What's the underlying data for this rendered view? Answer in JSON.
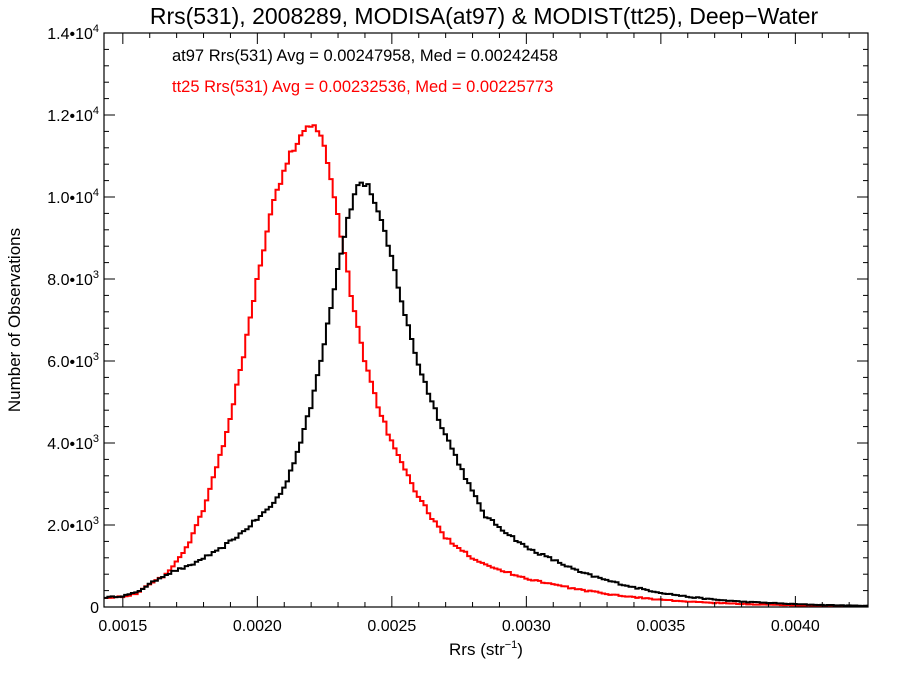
{
  "chart_data": {
    "type": "line",
    "title": "Rrs(531), 2008289, MODISA(at97) & MODIST(tt25), Deep−Water",
    "xlabel": {
      "base": "Rrs (str",
      "sup": "−1",
      "close": ")"
    },
    "ylabel": "Number of Observations",
    "xlim": [
      0.00143,
      0.00427
    ],
    "ylim": [
      0,
      14000
    ],
    "x_ticks": [
      0.0015,
      0.002,
      0.0025,
      0.003,
      0.0035,
      0.004
    ],
    "x_tick_labels": [
      "0.0015",
      "0.0020",
      "0.0025",
      "0.0030",
      "0.0035",
      "0.0040"
    ],
    "x_minor_step": 0.0001,
    "y_ticks": [
      0,
      2000,
      4000,
      6000,
      8000,
      10000,
      12000,
      14000
    ],
    "y_tick_labels": [
      {
        "mant": "0",
        "exp": ""
      },
      {
        "mant": "2.0•10",
        "exp": "3"
      },
      {
        "mant": "4.0•10",
        "exp": "3"
      },
      {
        "mant": "6.0•10",
        "exp": "3"
      },
      {
        "mant": "8.0•10",
        "exp": "3"
      },
      {
        "mant": "1.0•10",
        "exp": "4"
      },
      {
        "mant": "1.2•10",
        "exp": "4"
      },
      {
        "mant": "1.4•10",
        "exp": "4"
      }
    ],
    "y_minor_step": 400,
    "grid": false,
    "annotations": [
      {
        "text": "at97 Rrs(531) Avg = 0.00247958, Med = 0.00242458",
        "color": "#000000"
      },
      {
        "text": "tt25 Rrs(531) Avg = 0.00232536, Med = 0.00225773",
        "color": "#ff0000"
      }
    ],
    "bin_width": 1.25e-05,
    "series": [
      {
        "name": "at97",
        "color": "#000000",
        "style": "step",
        "points": [
          [
            0.00143,
            230
          ],
          [
            0.0015,
            270
          ],
          [
            0.00155,
            350
          ],
          [
            0.0016,
            560
          ],
          [
            0.00165,
            760
          ],
          [
            0.0017,
            900
          ],
          [
            0.00175,
            1000
          ],
          [
            0.0018,
            1200
          ],
          [
            0.00185,
            1350
          ],
          [
            0.0019,
            1600
          ],
          [
            0.00195,
            1850
          ],
          [
            0.002,
            2150
          ],
          [
            0.00205,
            2450
          ],
          [
            0.0021,
            2900
          ],
          [
            0.00215,
            3800
          ],
          [
            0.0022,
            4900
          ],
          [
            0.00225,
            6500
          ],
          [
            0.0023,
            8300
          ],
          [
            0.00234,
            9600
          ],
          [
            0.00238,
            10400
          ],
          [
            0.00242,
            10200
          ],
          [
            0.00246,
            9400
          ],
          [
            0.0025,
            8500
          ],
          [
            0.00255,
            7100
          ],
          [
            0.0026,
            5900
          ],
          [
            0.00265,
            5000
          ],
          [
            0.0027,
            4200
          ],
          [
            0.00275,
            3500
          ],
          [
            0.0028,
            2800
          ],
          [
            0.00285,
            2200
          ],
          [
            0.0029,
            1950
          ],
          [
            0.00295,
            1700
          ],
          [
            0.003,
            1450
          ],
          [
            0.0031,
            1150
          ],
          [
            0.0032,
            850
          ],
          [
            0.0033,
            650
          ],
          [
            0.0034,
            480
          ],
          [
            0.0035,
            350
          ],
          [
            0.0036,
            250
          ],
          [
            0.0037,
            180
          ],
          [
            0.0038,
            130
          ],
          [
            0.0039,
            100
          ],
          [
            0.004,
            70
          ],
          [
            0.0041,
            50
          ],
          [
            0.0042,
            35
          ],
          [
            0.00427,
            30
          ]
        ]
      },
      {
        "name": "tt25",
        "color": "#ff0000",
        "style": "step",
        "points": [
          [
            0.00143,
            230
          ],
          [
            0.0015,
            250
          ],
          [
            0.00155,
            330
          ],
          [
            0.0016,
            550
          ],
          [
            0.00165,
            750
          ],
          [
            0.0017,
            1100
          ],
          [
            0.00175,
            1600
          ],
          [
            0.0018,
            2400
          ],
          [
            0.00185,
            3400
          ],
          [
            0.0019,
            4600
          ],
          [
            0.00195,
            6200
          ],
          [
            0.002,
            8000
          ],
          [
            0.00205,
            9600
          ],
          [
            0.0021,
            10700
          ],
          [
            0.00215,
            11400
          ],
          [
            0.0022,
            11750
          ],
          [
            0.00223,
            11600
          ],
          [
            0.00226,
            10900
          ],
          [
            0.0023,
            9500
          ],
          [
            0.00235,
            7600
          ],
          [
            0.0024,
            6000
          ],
          [
            0.00245,
            4900
          ],
          [
            0.0025,
            4000
          ],
          [
            0.00255,
            3300
          ],
          [
            0.0026,
            2700
          ],
          [
            0.00265,
            2150
          ],
          [
            0.0027,
            1700
          ],
          [
            0.00275,
            1450
          ],
          [
            0.0028,
            1200
          ],
          [
            0.0029,
            900
          ],
          [
            0.003,
            700
          ],
          [
            0.0031,
            550
          ],
          [
            0.0032,
            420
          ],
          [
            0.0033,
            320
          ],
          [
            0.0034,
            240
          ],
          [
            0.0035,
            180
          ],
          [
            0.0036,
            130
          ],
          [
            0.0037,
            100
          ],
          [
            0.0038,
            75
          ],
          [
            0.0039,
            55
          ],
          [
            0.004,
            40
          ],
          [
            0.0041,
            30
          ],
          [
            0.0042,
            22
          ],
          [
            0.00427,
            18
          ]
        ]
      }
    ]
  }
}
